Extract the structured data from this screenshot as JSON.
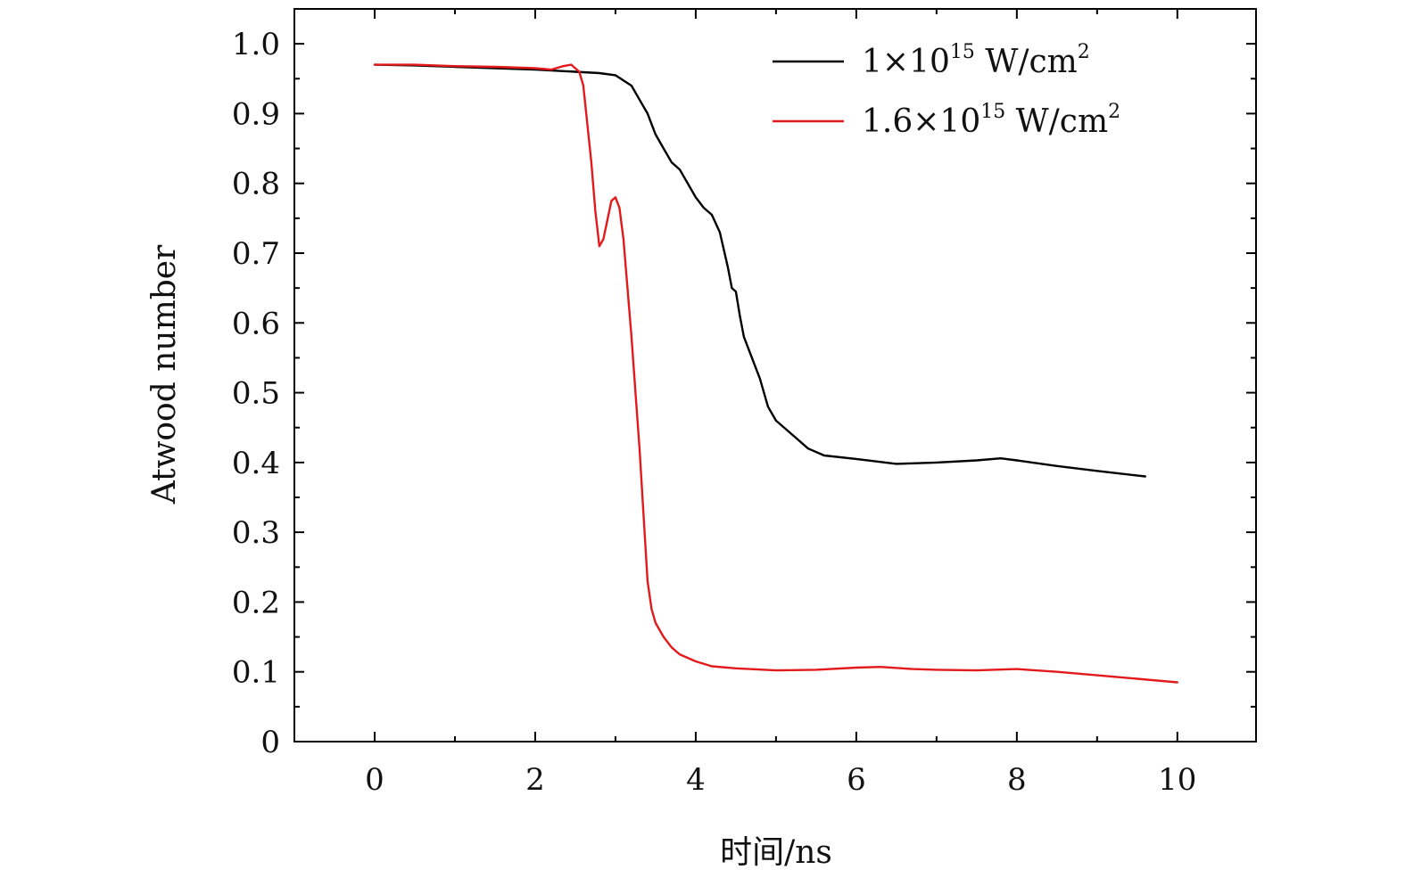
{
  "chart_data": {
    "type": "line",
    "title": "",
    "xlabel": "时间/ns",
    "ylabel": "Atwood number",
    "xlim": [
      -1,
      10.98
    ],
    "ylim": [
      0,
      1.05
    ],
    "x_ticks": [
      0,
      2,
      4,
      6,
      8,
      10
    ],
    "x_tick_labels": [
      "0",
      "2",
      "4",
      "6",
      "8",
      "10"
    ],
    "y_ticks": [
      0,
      0.1,
      0.2,
      0.3,
      0.4,
      0.5,
      0.6,
      0.7,
      0.8,
      0.9,
      1.0
    ],
    "y_tick_labels": [
      "0",
      "0.1",
      "0.2",
      "0.3",
      "0.4",
      "0.5",
      "0.6",
      "0.7",
      "0.8",
      "0.9",
      "1.0"
    ],
    "grid": false,
    "legend_position": "top-right",
    "series": [
      {
        "name": "1×10^15 W/cm^2",
        "legend_base": "1×10",
        "legend_exp": "15",
        "legend_unit": " W/cm",
        "legend_unit_exp": "2",
        "color": "#000000",
        "x": [
          0,
          0.5,
          1,
          1.5,
          2,
          2.5,
          2.8,
          3.0,
          3.2,
          3.3,
          3.4,
          3.5,
          3.6,
          3.7,
          3.8,
          3.9,
          4.0,
          4.1,
          4.2,
          4.3,
          4.4,
          4.45,
          4.5,
          4.55,
          4.6,
          4.7,
          4.8,
          4.9,
          5.0,
          5.2,
          5.4,
          5.6,
          6.0,
          6.5,
          7.0,
          7.5,
          7.8,
          8.0,
          8.5,
          9.0,
          9.6
        ],
        "y": [
          0.97,
          0.969,
          0.967,
          0.965,
          0.963,
          0.96,
          0.958,
          0.955,
          0.94,
          0.92,
          0.9,
          0.87,
          0.85,
          0.83,
          0.82,
          0.8,
          0.78,
          0.765,
          0.755,
          0.73,
          0.68,
          0.65,
          0.645,
          0.61,
          0.58,
          0.55,
          0.52,
          0.48,
          0.46,
          0.44,
          0.42,
          0.41,
          0.405,
          0.398,
          0.4,
          0.403,
          0.406,
          0.403,
          0.395,
          0.388,
          0.38
        ]
      },
      {
        "name": "1.6×10^15 W/cm^2",
        "legend_base": "1.6×10",
        "legend_exp": "15",
        "legend_unit": " W/cm",
        "legend_unit_exp": "2",
        "color": "#e31a1c",
        "x": [
          0,
          0.5,
          1,
          1.5,
          2,
          2.2,
          2.35,
          2.45,
          2.55,
          2.6,
          2.7,
          2.75,
          2.8,
          2.85,
          2.95,
          3.0,
          3.05,
          3.1,
          3.2,
          3.3,
          3.4,
          3.45,
          3.5,
          3.6,
          3.7,
          3.8,
          4.0,
          4.2,
          4.5,
          5.0,
          5.5,
          6.0,
          6.3,
          6.7,
          7.0,
          7.5,
          8.0,
          8.5,
          9.0,
          9.5,
          10.0
        ],
        "y": [
          0.97,
          0.97,
          0.968,
          0.967,
          0.965,
          0.963,
          0.968,
          0.97,
          0.96,
          0.94,
          0.83,
          0.76,
          0.71,
          0.72,
          0.775,
          0.78,
          0.765,
          0.72,
          0.58,
          0.42,
          0.23,
          0.19,
          0.17,
          0.15,
          0.135,
          0.125,
          0.115,
          0.108,
          0.105,
          0.102,
          0.103,
          0.106,
          0.107,
          0.104,
          0.103,
          0.102,
          0.104,
          0.1,
          0.095,
          0.09,
          0.085
        ]
      }
    ]
  }
}
